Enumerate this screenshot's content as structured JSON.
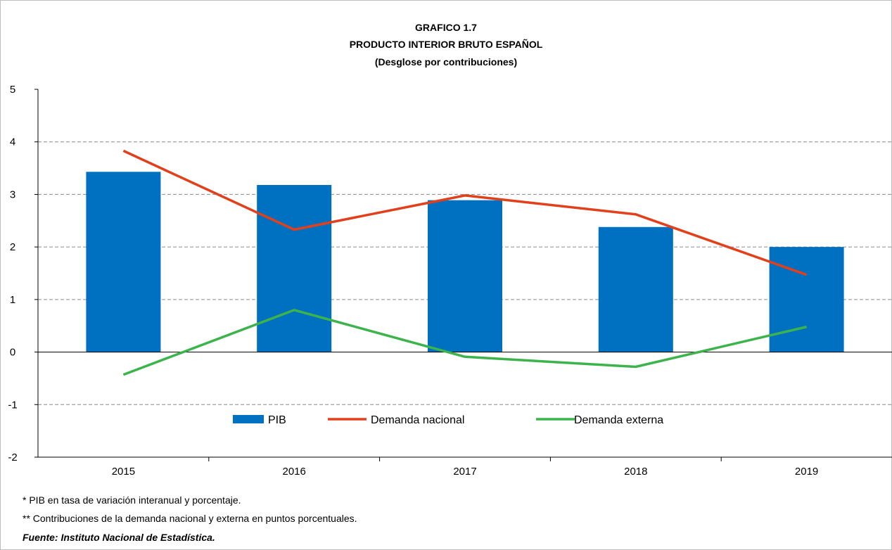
{
  "chart_data": {
    "type": "bar",
    "title": "GRAFICO 1.7",
    "subtitle": "PRODUCTO INTERIOR BRUTO ESPAÑOL",
    "subtitle2": "(Desglose por contribuciones)",
    "xlabel": "",
    "ylabel": "",
    "categories": [
      "2015",
      "2016",
      "2017",
      "2018",
      "2019"
    ],
    "ylim": [
      -2,
      5
    ],
    "yticks": [
      "5",
      "4",
      "3",
      "2",
      "1",
      "0",
      "-1",
      "-2"
    ],
    "ytick_values": [
      5,
      4,
      3,
      2,
      1,
      0,
      -1,
      -2
    ],
    "grid": true,
    "legend_position": "bottom-center",
    "series": [
      {
        "name": "PIB",
        "type": "bar",
        "color": "#0070C0",
        "values": [
          3.43,
          3.18,
          2.89,
          2.38,
          2.0
        ]
      },
      {
        "name": "Demanda nacional",
        "type": "line",
        "color": "#E2401B",
        "values": [
          3.83,
          2.33,
          2.98,
          2.62,
          1.47
        ]
      },
      {
        "name": "Demanda externa",
        "type": "line",
        "color": "#3CB44B",
        "values": [
          -0.43,
          0.8,
          -0.09,
          -0.28,
          0.48
        ]
      }
    ]
  },
  "notes": {
    "note1": "* PIB en tasa de variación interanual y porcentaje.",
    "note2": "** Contribuciones de la demanda nacional y externa en puntos porcentuales.",
    "source": "Fuente: Instituto Nacional de Estadística."
  }
}
